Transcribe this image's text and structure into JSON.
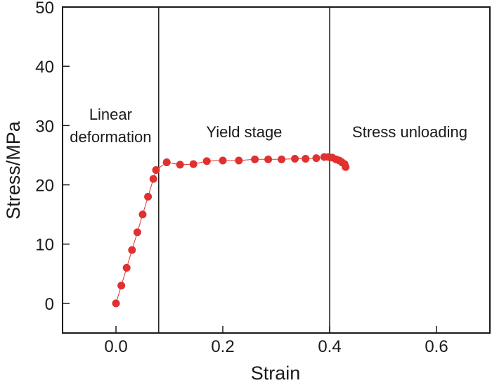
{
  "chart_data": {
    "type": "line",
    "xlabel": "Strain",
    "ylabel": "Stress/MPa",
    "xlim": [
      -0.1,
      0.7
    ],
    "ylim": [
      -5,
      50
    ],
    "x_ticks": [
      0.0,
      0.2,
      0.4,
      0.6
    ],
    "x_tick_labels": [
      "0.0",
      "0.2",
      "0.4",
      "0.6"
    ],
    "y_ticks": [
      0,
      10,
      20,
      30,
      40,
      50
    ],
    "y_tick_labels": [
      "0",
      "10",
      "20",
      "30",
      "40",
      "50"
    ],
    "grid": false,
    "series_color": "#e03030",
    "dividers": [
      0.08,
      0.4
    ],
    "regions": [
      {
        "lines": [
          "Linear",
          "deformation"
        ]
      },
      {
        "lines": [
          "Yield stage"
        ]
      },
      {
        "lines": [
          "Stress unloading"
        ]
      }
    ],
    "series": [
      {
        "x": [
          0.0,
          0.01,
          0.02,
          0.03,
          0.04,
          0.05,
          0.06,
          0.07,
          0.075,
          0.095,
          0.12,
          0.145,
          0.17,
          0.2,
          0.23,
          0.26,
          0.285,
          0.31,
          0.335,
          0.355,
          0.375,
          0.39,
          0.398,
          0.405,
          0.412,
          0.418,
          0.423,
          0.428,
          0.43
        ],
        "y": [
          0,
          3,
          6,
          9,
          12,
          15,
          18,
          21,
          22.5,
          23.8,
          23.4,
          23.5,
          24.0,
          24.1,
          24.1,
          24.3,
          24.3,
          24.3,
          24.4,
          24.4,
          24.5,
          24.7,
          24.7,
          24.6,
          24.3,
          24.1,
          23.8,
          23.5,
          23.0
        ]
      }
    ]
  }
}
